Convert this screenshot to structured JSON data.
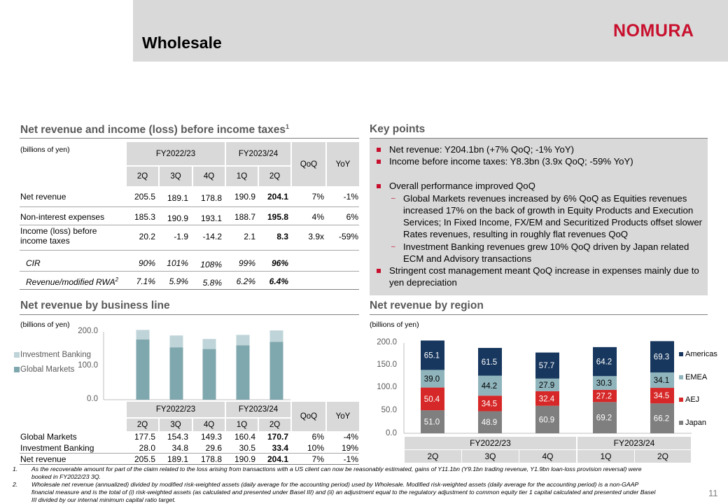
{
  "page": {
    "title": "Wholesale",
    "logo": "NOMURA",
    "page_number": "11"
  },
  "pl_table": {
    "title": "Net revenue and income (loss) before income taxes",
    "title_sup": "1",
    "unit": "(billions of yen)",
    "fy1": "FY2022/23",
    "fy2": "FY2023/24",
    "quarters": [
      "2Q",
      "3Q",
      "4Q",
      "1Q",
      "2Q"
    ],
    "qoq": "QoQ",
    "yoy": "YoY",
    "rows": [
      {
        "label": "Net revenue",
        "v": [
          "205.5",
          "189.1",
          "178.8",
          "190.9",
          "204.1"
        ],
        "qoq": "7%",
        "yoy": "-1%"
      },
      {
        "label": "Non-interest expenses",
        "v": [
          "185.3",
          "190.9",
          "193.1",
          "188.7",
          "195.8"
        ],
        "qoq": "4%",
        "yoy": "6%"
      },
      {
        "label": "Income (loss) before income taxes",
        "label1": "Income (loss) before",
        "label2": "income taxes",
        "v": [
          "20.2",
          "-1.9",
          "-14.2",
          "2.1",
          "8.3"
        ],
        "qoq": "3.9x",
        "yoy": "-59%"
      },
      {
        "label": "CIR",
        "v": [
          "90%",
          "101%",
          "108%",
          "99%",
          "96%"
        ]
      },
      {
        "label": "Revenue/modified RWA",
        "sup": "2",
        "v": [
          "7.1%",
          "5.9%",
          "5.8%",
          "6.2%",
          "6.4%"
        ]
      }
    ]
  },
  "key_points": {
    "title": "Key points",
    "l1": "Net revenue: Y204.1bn (+7% QoQ; -1% YoY)",
    "l2": "Income before income taxes: Y8.3bn (3.9x QoQ; -59% YoY)",
    "l3": "Overall performance improved QoQ",
    "s1a": "Global Markets revenues increased by 6% QoQ as Equities revenues",
    "s1b": "increased 17% on the back of growth in Equity Products and Execution",
    "s1c": "Services; In Fixed Income, FX/EM and Securitized Products offset slower",
    "s1d": "Rates revenues, resulting in roughly flat revenues QoQ",
    "s2a": "Investment Banking revenues grew 10% QoQ driven by Japan related",
    "s2b": "ECM and Advisory transactions",
    "l4a": "Stringent cost management meant QoQ increase in expenses mainly due to",
    "l4b": "yen depreciation"
  },
  "business_chart": {
    "title": "Net revenue by business line",
    "unit": "(billions of yen)",
    "yticks": [
      "200.0",
      "100.0",
      "0.0"
    ],
    "legend": [
      "Investment Banking",
      "Global Markets"
    ],
    "fy1": "FY2022/23",
    "fy2": "FY2023/24",
    "quarters": [
      "2Q",
      "3Q",
      "4Q",
      "1Q",
      "2Q"
    ],
    "qoq": "QoQ",
    "yoy": "YoY",
    "rows": [
      {
        "label": "Global Markets",
        "v": [
          "177.5",
          "154.3",
          "149.3",
          "160.4",
          "170.7"
        ],
        "qoq": "6%",
        "yoy": "-4%"
      },
      {
        "label": "Investment Banking",
        "v": [
          "28.0",
          "34.8",
          "29.6",
          "30.5",
          "33.4"
        ],
        "qoq": "10%",
        "yoy": "19%"
      },
      {
        "label": "Net revenue",
        "v": [
          "205.5",
          "189.1",
          "178.8",
          "190.9",
          "204.1"
        ],
        "qoq": "7%",
        "yoy": "-1%"
      }
    ]
  },
  "region_chart": {
    "title": "Net revenue by region",
    "unit": "(billions of yen)",
    "yticks": [
      "200.0",
      "150.0",
      "100.0",
      "50.0",
      "0.0"
    ],
    "legend": [
      "Americas",
      "EMEA",
      "AEJ",
      "Japan"
    ],
    "fy1": "FY2022/23",
    "fy2": "FY2023/24",
    "quarters": [
      "2Q",
      "3Q",
      "4Q",
      "1Q",
      "2Q"
    ]
  },
  "colors": {
    "americas": "#17375e",
    "emea": "#8fb4bc",
    "aej": "#d62828",
    "japan": "#7f7f7f",
    "gm": "#7fa7ae",
    "ib": "#bfd4d8",
    "accent": "#c8102e"
  },
  "chart_data": [
    {
      "type": "bar",
      "stacked": true,
      "title": "Net revenue by business line",
      "categories": [
        "2Q",
        "3Q",
        "4Q",
        "1Q",
        "2Q"
      ],
      "series": [
        {
          "name": "Global Markets",
          "values": [
            177.5,
            154.3,
            149.3,
            160.4,
            170.7
          ]
        },
        {
          "name": "Investment Banking",
          "values": [
            28.0,
            34.8,
            29.6,
            30.5,
            33.4
          ]
        }
      ],
      "ylim": [
        0,
        200
      ]
    },
    {
      "type": "bar",
      "stacked": true,
      "title": "Net revenue by region",
      "categories": [
        "2Q",
        "3Q",
        "4Q",
        "1Q",
        "2Q"
      ],
      "series": [
        {
          "name": "Japan",
          "values": [
            51.0,
            48.9,
            60.9,
            69.2,
            66.2
          ]
        },
        {
          "name": "AEJ",
          "values": [
            50.4,
            34.5,
            32.4,
            27.2,
            34.5
          ]
        },
        {
          "name": "EMEA",
          "values": [
            39.0,
            44.2,
            27.9,
            30.3,
            34.1
          ]
        },
        {
          "name": "Americas",
          "values": [
            65.1,
            61.5,
            57.7,
            64.2,
            69.3
          ]
        }
      ],
      "ylim": [
        0,
        200
      ]
    }
  ],
  "footnotes": {
    "n1": "1.",
    "f1a": "As the recoverable amount for part of the claim related to the loss arising from transactions with a US client can now be reasonably estimated, gains of Y11.1bn (Y9.1bn trading revenue, Y1.9bn loan-loss provision reversal) were",
    "f1b": "booked in FY2022/23 3Q.",
    "n2": "2.",
    "f2a": "Wholesale net revenue (annualized) divided by modified risk-weighted assets (daily average for the accounting period) used by Wholesale. Modified risk-weighted assets (daily average for the accounting period) is a non-GAAP",
    "f2b": "financial measure and is the total of (i) risk-weighted assets (as calculated and presented under Basel III) and (ii) an adjustment equal to the regulatory adjustment to common equity tier 1 capital calculated and presented under Basel",
    "f2c": "III divided by our internal minimum capital ratio target."
  }
}
